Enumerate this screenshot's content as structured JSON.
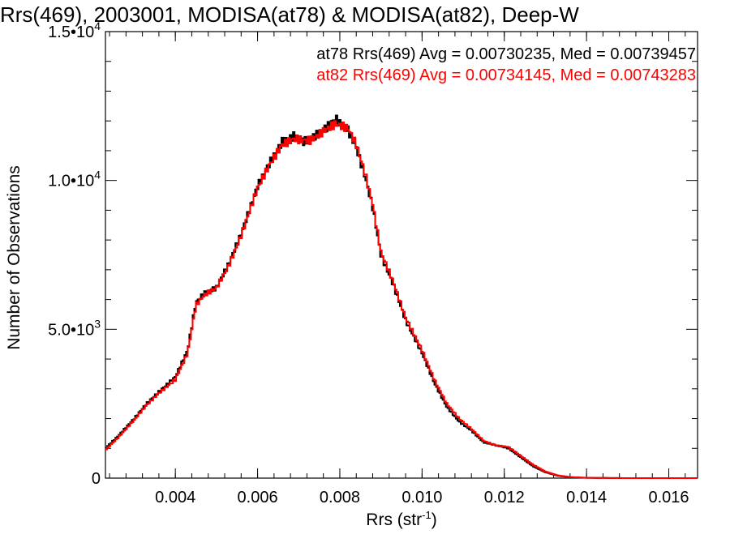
{
  "chart_data": {
    "type": "line",
    "title": "Rrs(469), 2003001, MODISA(at78) & MODISA(at82), Deep-W",
    "xlabel": "Rrs (str",
    "xlabel_sup": "-1",
    "xlabel_tail": ")",
    "ylabel": "Number of Observations",
    "xlim": [
      0.0023,
      0.0167
    ],
    "ylim": [
      0,
      15000
    ],
    "x_ticks": [
      {
        "value": 0.004,
        "label": "0.004"
      },
      {
        "value": 0.006,
        "label": "0.006"
      },
      {
        "value": 0.008,
        "label": "0.008"
      },
      {
        "value": 0.01,
        "label": "0.010"
      },
      {
        "value": 0.012,
        "label": "0.012"
      },
      {
        "value": 0.014,
        "label": "0.014"
      },
      {
        "value": 0.016,
        "label": "0.016"
      }
    ],
    "y_ticks": [
      {
        "value": 0,
        "label": "0",
        "exp": ""
      },
      {
        "value": 5000,
        "label": "5.0•10",
        "exp": "3"
      },
      {
        "value": 10000,
        "label": "1.0•10",
        "exp": "4"
      },
      {
        "value": 15000,
        "label": "1.5•10",
        "exp": "4"
      }
    ],
    "grid": false,
    "legend_position": "top-right",
    "series": [
      {
        "name": "at78 Rrs(469) Avg = 0.00730235, Med = 0.00739457",
        "color": "#000000",
        "x": [
          0.0023,
          0.0026,
          0.003,
          0.0033,
          0.0036,
          0.004,
          0.0043,
          0.0045,
          0.0047,
          0.005,
          0.0053,
          0.0056,
          0.006,
          0.0063,
          0.0066,
          0.0069,
          0.0071,
          0.0073,
          0.0075,
          0.0077,
          0.0079,
          0.008,
          0.0082,
          0.0084,
          0.0086,
          0.0088,
          0.009,
          0.0093,
          0.0096,
          0.01,
          0.0103,
          0.0106,
          0.0109,
          0.0112,
          0.0115,
          0.0118,
          0.0121,
          0.0124,
          0.0127,
          0.013,
          0.0133,
          0.0136,
          0.014,
          0.0145,
          0.015,
          0.016,
          0.0167
        ],
        "y": [
          1000,
          1400,
          2000,
          2500,
          2900,
          3400,
          4300,
          5900,
          6200,
          6400,
          7200,
          8200,
          9800,
          10600,
          11300,
          11500,
          11300,
          11400,
          11600,
          11800,
          12100,
          11900,
          11700,
          11100,
          10200,
          9100,
          7500,
          6500,
          5300,
          4200,
          3200,
          2400,
          1900,
          1600,
          1200,
          1100,
          1000,
          700,
          400,
          200,
          80,
          30,
          10,
          5,
          0,
          0,
          0
        ]
      },
      {
        "name": "at82 Rrs(469) Avg = 0.00734145, Med = 0.00743283",
        "color": "#ff0000",
        "x": [
          0.0023,
          0.0026,
          0.003,
          0.0033,
          0.0036,
          0.004,
          0.0043,
          0.0045,
          0.0047,
          0.005,
          0.0053,
          0.0056,
          0.006,
          0.0063,
          0.0066,
          0.0069,
          0.0071,
          0.0073,
          0.0075,
          0.0077,
          0.0079,
          0.008,
          0.0082,
          0.0084,
          0.0086,
          0.0088,
          0.009,
          0.0093,
          0.0096,
          0.01,
          0.0103,
          0.0106,
          0.0109,
          0.0112,
          0.0115,
          0.0118,
          0.0121,
          0.0124,
          0.0127,
          0.013,
          0.0133,
          0.0136,
          0.014,
          0.0145,
          0.015,
          0.016,
          0.0167
        ],
        "y": [
          950,
          1350,
          1950,
          2450,
          2850,
          3300,
          4200,
          5800,
          6150,
          6400,
          7150,
          8150,
          9750,
          10550,
          11200,
          11400,
          11350,
          11350,
          11550,
          11750,
          11900,
          11850,
          11750,
          11200,
          10300,
          9200,
          7600,
          6600,
          5400,
          4300,
          3300,
          2500,
          2000,
          1650,
          1250,
          1100,
          1050,
          750,
          450,
          220,
          90,
          35,
          12,
          5,
          0,
          0,
          0
        ]
      }
    ]
  }
}
